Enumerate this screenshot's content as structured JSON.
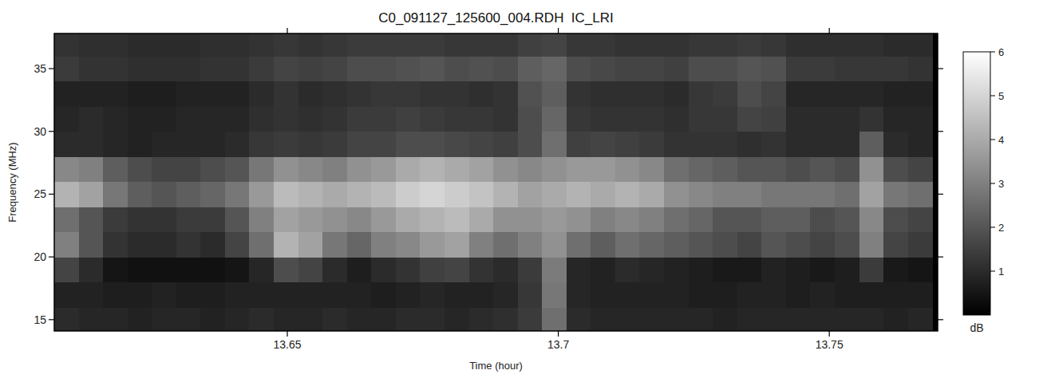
{
  "chart_data": {
    "type": "heatmap",
    "title": "C0_091127_125600_004.RDH  IC_LRI",
    "x_label": "Time (hour)",
    "y_label": "Frequency (MHz)",
    "xlim": [
      13.607,
      13.77
    ],
    "ylim": [
      14.1,
      37.8
    ],
    "xticks": [
      13.65,
      13.7,
      {
        "value": 13.75,
        "label": "13.75"
      }
    ],
    "yticks": [
      15,
      20,
      25,
      30,
      35
    ],
    "x_edges": [
      13.607,
      13.6115,
      13.616,
      13.6205,
      13.625,
      13.6295,
      13.634,
      13.6385,
      13.643,
      13.6475,
      13.652,
      13.6565,
      13.661,
      13.6655,
      13.67,
      13.6745,
      13.679,
      13.6835,
      13.688,
      13.6925,
      13.697,
      13.7015,
      13.706,
      13.7105,
      13.715,
      13.7195,
      13.724,
      13.7285,
      13.733,
      13.7375,
      13.742,
      13.7465,
      13.751,
      13.7555,
      13.76,
      13.7645,
      13.769
    ],
    "y_edges": [
      14,
      16,
      18,
      20,
      22,
      24,
      26,
      28,
      30,
      32,
      34,
      36,
      38
    ],
    "cells": [
      [
        1.0,
        0.9,
        0.9,
        0.8,
        0.9,
        0.9,
        0.8,
        0.9,
        1.0,
        0.9,
        0.9,
        1.0,
        0.9,
        0.9,
        1.0,
        1.0,
        0.9,
        1.0,
        1.1,
        1.4,
        2.6,
        1.0,
        0.9,
        0.9,
        0.9,
        0.9,
        0.9,
        0.8,
        0.9,
        0.9,
        0.9,
        0.9,
        0.9,
        0.9,
        0.8,
        0.9
      ],
      [
        0.8,
        0.8,
        0.7,
        0.7,
        0.8,
        0.7,
        0.7,
        0.8,
        0.8,
        0.8,
        0.8,
        0.8,
        0.8,
        0.7,
        0.8,
        0.9,
        0.8,
        0.8,
        0.9,
        1.3,
        2.8,
        0.9,
        0.8,
        0.8,
        0.8,
        0.8,
        0.7,
        0.7,
        0.8,
        0.8,
        0.7,
        0.8,
        0.7,
        0.7,
        0.7,
        0.7
      ],
      [
        1.6,
        1.0,
        0.5,
        0.4,
        0.4,
        0.4,
        0.4,
        0.5,
        0.9,
        1.8,
        1.6,
        1.0,
        0.7,
        1.0,
        1.2,
        1.5,
        1.6,
        1.2,
        1.0,
        1.4,
        2.9,
        0.9,
        0.8,
        1.0,
        0.9,
        0.8,
        0.7,
        0.6,
        0.6,
        0.8,
        0.7,
        0.6,
        0.7,
        1.4,
        0.6,
        0.5
      ],
      [
        3.0,
        2.0,
        1.2,
        1.0,
        1.0,
        1.2,
        1.0,
        1.6,
        2.6,
        4.2,
        3.8,
        2.8,
        2.4,
        3.0,
        3.2,
        3.6,
        3.8,
        3.0,
        2.6,
        3.0,
        3.4,
        2.6,
        2.2,
        2.6,
        2.4,
        2.2,
        2.0,
        1.8,
        1.6,
        2.0,
        1.8,
        1.6,
        1.8,
        3.0,
        1.6,
        1.4
      ],
      [
        2.6,
        2.0,
        1.4,
        1.2,
        1.2,
        1.4,
        1.4,
        2.0,
        3.0,
        3.8,
        3.6,
        3.4,
        3.2,
        3.6,
        4.0,
        4.2,
        4.4,
        4.0,
        3.4,
        3.4,
        3.6,
        3.4,
        3.0,
        3.2,
        3.0,
        2.6,
        2.4,
        2.0,
        2.0,
        2.2,
        2.2,
        1.8,
        2.0,
        3.2,
        1.8,
        1.6
      ],
      [
        4.2,
        3.8,
        2.8,
        2.2,
        2.0,
        2.2,
        2.4,
        2.8,
        3.6,
        4.4,
        4.2,
        4.0,
        4.2,
        4.4,
        4.8,
        5.0,
        4.8,
        4.6,
        4.2,
        3.8,
        4.0,
        4.2,
        4.0,
        4.2,
        4.0,
        3.4,
        3.2,
        3.0,
        3.0,
        2.8,
        2.8,
        2.8,
        2.6,
        3.8,
        2.8,
        2.6
      ],
      [
        3.2,
        3.0,
        2.2,
        1.8,
        1.6,
        1.6,
        1.8,
        2.0,
        2.8,
        3.4,
        3.2,
        3.0,
        3.4,
        3.6,
        4.0,
        4.2,
        4.0,
        3.8,
        3.4,
        3.2,
        3.4,
        3.6,
        3.6,
        3.4,
        3.2,
        2.6,
        2.4,
        2.2,
        2.0,
        2.0,
        1.8,
        2.0,
        1.8,
        3.4,
        1.8,
        1.6
      ],
      [
        1.0,
        1.0,
        0.9,
        0.8,
        0.9,
        0.9,
        0.9,
        1.0,
        1.3,
        1.4,
        1.3,
        1.4,
        1.6,
        1.6,
        1.8,
        1.8,
        1.7,
        1.6,
        1.5,
        1.8,
        2.6,
        1.5,
        1.6,
        1.5,
        1.4,
        1.2,
        1.2,
        1.2,
        1.1,
        1.2,
        1.0,
        1.0,
        1.0,
        2.2,
        1.0,
        0.9
      ],
      [
        0.9,
        1.0,
        0.9,
        0.8,
        0.8,
        0.9,
        0.9,
        0.9,
        1.1,
        1.2,
        1.1,
        1.2,
        1.4,
        1.4,
        1.5,
        1.4,
        1.3,
        1.3,
        1.2,
        1.8,
        2.4,
        1.3,
        1.2,
        1.2,
        1.2,
        1.1,
        1.3,
        1.3,
        1.6,
        1.5,
        1.0,
        1.0,
        1.0,
        1.2,
        0.9,
        0.9
      ],
      [
        0.8,
        0.8,
        0.8,
        0.7,
        0.7,
        0.8,
        0.8,
        0.8,
        1.0,
        1.2,
        1.0,
        1.1,
        1.2,
        1.3,
        1.3,
        1.2,
        1.2,
        1.1,
        1.2,
        1.9,
        2.2,
        1.2,
        1.1,
        1.1,
        1.1,
        1.0,
        1.3,
        1.4,
        1.8,
        1.6,
        0.9,
        0.9,
        0.9,
        0.9,
        0.8,
        0.8
      ],
      [
        1.4,
        1.2,
        1.2,
        1.1,
        1.1,
        1.1,
        1.2,
        1.2,
        1.4,
        1.6,
        1.5,
        1.6,
        1.8,
        1.8,
        1.9,
        2.0,
        1.8,
        1.9,
        1.8,
        2.2,
        2.4,
        1.8,
        1.7,
        1.6,
        1.6,
        1.5,
        1.8,
        1.8,
        2.0,
        1.9,
        1.4,
        1.4,
        1.3,
        1.3,
        1.3,
        1.2
      ],
      [
        1.2,
        1.1,
        1.1,
        1.0,
        1.0,
        1.0,
        1.1,
        1.1,
        1.2,
        1.3,
        1.2,
        1.3,
        1.4,
        1.4,
        1.4,
        1.4,
        1.3,
        1.3,
        1.3,
        1.5,
        1.6,
        1.3,
        1.3,
        1.2,
        1.2,
        1.2,
        1.3,
        1.3,
        1.4,
        1.3,
        1.1,
        1.1,
        1.1,
        1.1,
        1.0,
        1.0
      ]
    ],
    "colorbar_range": [
      0,
      6
    ],
    "colorbar_ticks": [
      1,
      2,
      3,
      4,
      5,
      6
    ],
    "colorbar_label": "dB"
  }
}
